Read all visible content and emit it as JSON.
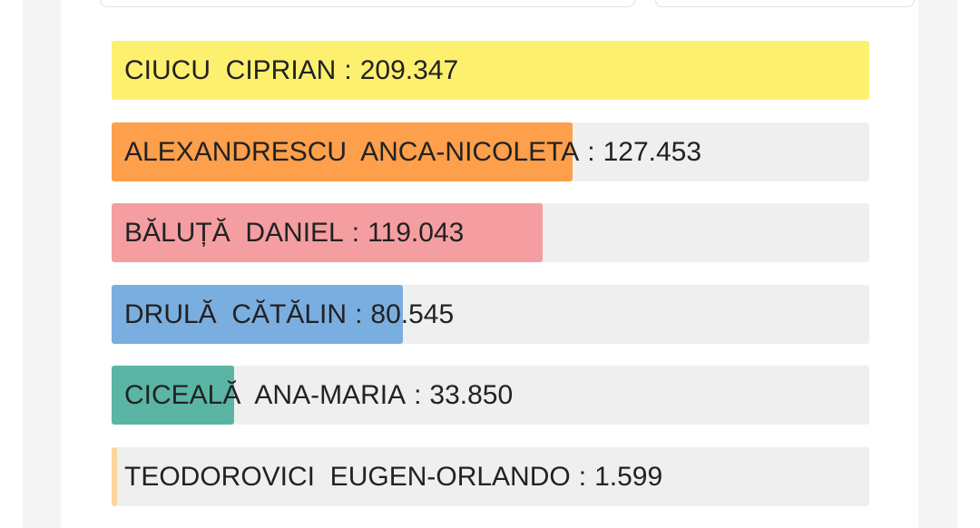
{
  "chart_data": {
    "type": "bar",
    "orientation": "horizontal",
    "categories": [
      "CIUCU  CIPRIAN",
      "ALEXANDRESCU  ANCA-NICOLETA",
      "BĂLUȚĂ  DANIEL",
      "DRULĂ  CĂTĂLIN",
      "CICEALĂ  ANA-MARIA",
      "TEODOROVICI  EUGEN-ORLANDO"
    ],
    "values": [
      209347,
      127453,
      119043,
      80545,
      33850,
      1599
    ],
    "value_labels": [
      "209.347",
      "127.453",
      "119.043",
      "80.545",
      "33.850",
      "1.599"
    ],
    "colors": [
      "#fdf06f",
      "#fd9f4b",
      "#f59ea1",
      "#7aaee0",
      "#5bb5a5",
      "#fcd59c"
    ],
    "separator": ":",
    "xlim": [
      0,
      209347
    ]
  }
}
